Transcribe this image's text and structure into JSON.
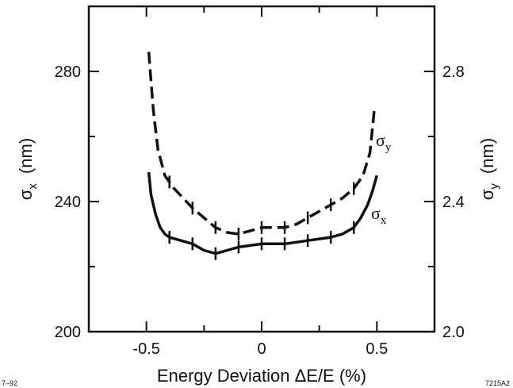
{
  "chart_data": {
    "type": "line",
    "xlabel": "Energy Deviation ΔE/E   (%)",
    "ylabel_left": {
      "main": "σ",
      "sub": "x",
      "unit": "(nm)"
    },
    "ylabel_right": {
      "main": "σ",
      "sub": "y",
      "unit": "(nm)"
    },
    "xlim": [
      -0.75,
      0.75
    ],
    "ylim_left": [
      200,
      300
    ],
    "ylim_right": [
      2.0,
      3.0
    ],
    "x_ticks": [
      -0.5,
      0,
      0.5
    ],
    "x_tick_labels": [
      "-0.5",
      "0",
      "0.5"
    ],
    "y_left_ticks": [
      200,
      240,
      280
    ],
    "y_left_tick_labels": [
      "200",
      "240",
      "280"
    ],
    "y_right_ticks": [
      2.0,
      2.4,
      2.8
    ],
    "y_right_tick_labels": [
      "2.0",
      "2.4",
      "2.8"
    ],
    "series": [
      {
        "name": "σy",
        "name_main": "σ",
        "name_sub": "y",
        "axis": "right",
        "style": "dashed",
        "x": [
          -0.49,
          -0.47,
          -0.45,
          -0.42,
          -0.38,
          -0.34,
          -0.3,
          -0.25,
          -0.2,
          -0.15,
          -0.1,
          -0.05,
          0,
          0.05,
          0.1,
          0.15,
          0.2,
          0.25,
          0.3,
          0.35,
          0.4,
          0.44,
          0.47,
          0.49
        ],
        "values": [
          2.86,
          2.68,
          2.56,
          2.48,
          2.44,
          2.41,
          2.38,
          2.35,
          2.32,
          2.305,
          2.3,
          2.31,
          2.32,
          2.32,
          2.32,
          2.33,
          2.35,
          2.37,
          2.39,
          2.41,
          2.44,
          2.48,
          2.55,
          2.69
        ],
        "error_bar_x": [
          -0.4,
          -0.3,
          -0.2,
          -0.1,
          0,
          0.1,
          0.2,
          0.3,
          0.4
        ]
      },
      {
        "name": "σx",
        "name_main": "σ",
        "name_sub": "x",
        "axis": "left",
        "style": "solid",
        "x": [
          -0.49,
          -0.48,
          -0.46,
          -0.44,
          -0.42,
          -0.4,
          -0.35,
          -0.3,
          -0.25,
          -0.2,
          -0.15,
          -0.1,
          -0.05,
          0,
          0.05,
          0.1,
          0.15,
          0.2,
          0.25,
          0.3,
          0.35,
          0.4,
          0.43,
          0.46,
          0.48,
          0.5
        ],
        "values": [
          249,
          242,
          236,
          232,
          230,
          229,
          228,
          227,
          225,
          224,
          225,
          226,
          226.5,
          227,
          227,
          227,
          227.5,
          228,
          228.5,
          229,
          230,
          232,
          235,
          239,
          243,
          248
        ],
        "error_bar_x": [
          -0.4,
          -0.3,
          -0.2,
          -0.1,
          0,
          0.1,
          0.2,
          0.3,
          0.4
        ]
      }
    ]
  },
  "corner_notes": {
    "left": "7–92",
    "right": "7215A2"
  }
}
